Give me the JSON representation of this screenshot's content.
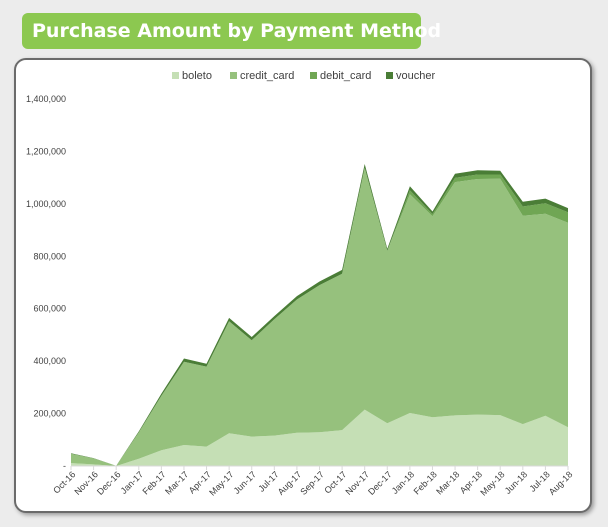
{
  "title": "Purchase Amount by Payment Method",
  "chart_data": {
    "type": "area",
    "stacked": true,
    "categories": [
      "Oct-16",
      "Nov-16",
      "Dec-16",
      "Jan-17",
      "Feb-17",
      "Mar-17",
      "Apr-17",
      "May-17",
      "Jun-17",
      "Jul-17",
      "Aug-17",
      "Sep-17",
      "Oct-17",
      "Nov-17",
      "Dec-17",
      "Jan-18",
      "Feb-18",
      "Mar-18",
      "Apr-18",
      "May-18",
      "Jun-18",
      "Jul-18",
      "Aug-18"
    ],
    "series": [
      {
        "name": "boleto",
        "color": "#c5dfb5",
        "values": [
          11000,
          6000,
          0,
          28000,
          60000,
          80000,
          74000,
          125000,
          112000,
          116000,
          127000,
          129000,
          137000,
          215000,
          163000,
          202000,
          186000,
          193000,
          196000,
          194000,
          160000,
          192000,
          148000
        ]
      },
      {
        "name": "credit_card",
        "color": "#96c17d",
        "values": [
          36000,
          23000,
          1000,
          100000,
          208000,
          318000,
          305000,
          427000,
          368000,
          444000,
          508000,
          561000,
          596000,
          923000,
          658000,
          835000,
          767000,
          890000,
          899000,
          902000,
          795000,
          770000,
          780000
        ]
      },
      {
        "name": "debit_card",
        "color": "#70a654",
        "values": [
          0,
          0,
          0,
          0,
          0,
          0,
          0,
          0,
          0,
          0,
          0,
          0,
          0,
          0,
          0,
          15000,
          8000,
          16000,
          17000,
          16000,
          35000,
          40000,
          40000
        ]
      },
      {
        "name": "voucher",
        "color": "#4a7d36",
        "values": [
          2000,
          1000,
          0,
          4000,
          8000,
          12000,
          11000,
          13000,
          12000,
          12000,
          13000,
          14000,
          15000,
          14000,
          8000,
          15000,
          10000,
          16000,
          16000,
          14000,
          18000,
          18000,
          16000
        ]
      }
    ],
    "ylim": [
      0,
      1400000
    ],
    "yticks": [
      0,
      200000,
      400000,
      600000,
      800000,
      1000000,
      1200000,
      1400000
    ],
    "ytick_labels": [
      "-",
      "200,000",
      "400,000",
      "600,000",
      "800,000",
      "1,000,000",
      "1,200,000",
      "1,400,000"
    ],
    "legend_position": "top",
    "grid": false
  }
}
